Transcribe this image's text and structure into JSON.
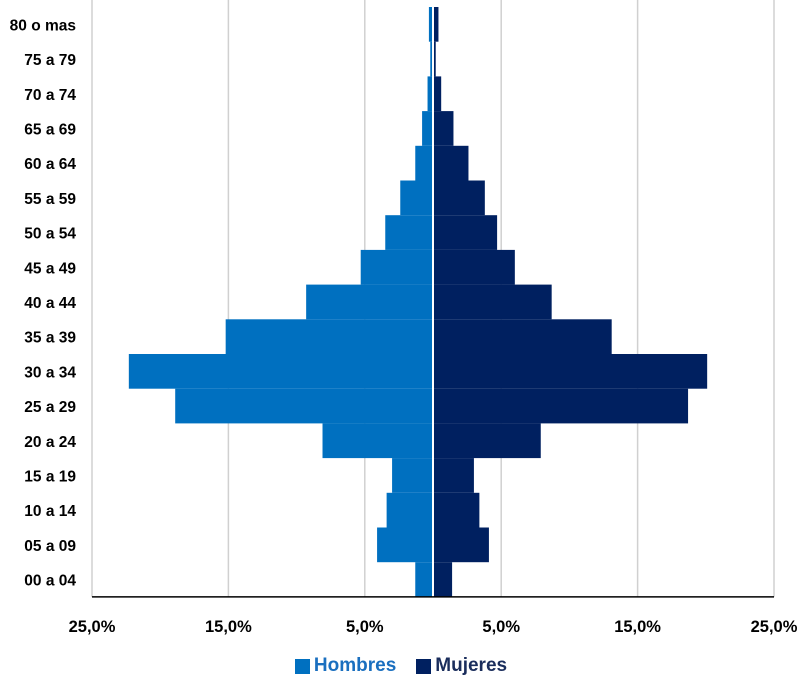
{
  "chart_data": {
    "type": "bar",
    "orientation": "horizontal-population-pyramid",
    "categories": [
      "00 a 04",
      "05 a 09",
      "10 a 14",
      "15 a 19",
      "20 a 24",
      "25 a 29",
      "30 a 34",
      "35 a 39",
      "40 a 44",
      "45 a 49",
      "50 a 54",
      "55 a 59",
      "60 a 64",
      "65 a 69",
      "70 a 74",
      "75 a 79",
      "80 o mas"
    ],
    "series": [
      {
        "name": "Hombres",
        "color": "#0070C0",
        "values": [
          1.3,
          4.1,
          3.4,
          3.0,
          8.1,
          18.9,
          22.3,
          15.2,
          9.3,
          5.3,
          3.5,
          2.4,
          1.3,
          0.8,
          0.4,
          0.2,
          0.3
        ]
      },
      {
        "name": "Mujeres",
        "color": "#002060",
        "values": [
          1.4,
          4.1,
          3.4,
          3.0,
          7.9,
          18.7,
          20.1,
          13.1,
          8.7,
          6.0,
          4.7,
          3.8,
          2.6,
          1.5,
          0.6,
          0.2,
          0.4
        ]
      }
    ],
    "xticks": [
      "25,0%",
      "15,0%",
      "5,0%",
      "5,0%",
      "15,0%",
      "25,0%"
    ],
    "xlim": [
      -25,
      25
    ],
    "grid": true,
    "legend_position": "bottom"
  }
}
